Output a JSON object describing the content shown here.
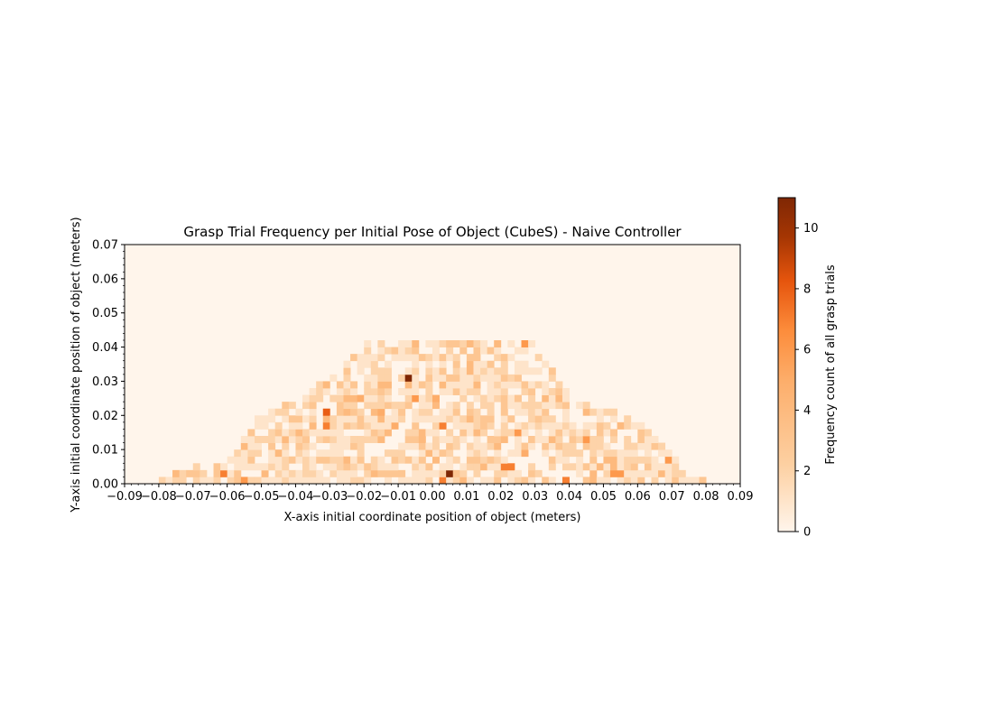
{
  "chart_data": {
    "type": "heatmap",
    "title": "Grasp Trial Frequency per Initial Pose of Object (CubeS) - Naive Controller",
    "xlabel": "X-axis initial coordinate position of object (meters)",
    "ylabel": "Y-axis initial coordinate position of object (meters)",
    "colorbar_label": "Frequency count of all grasp trials",
    "xlim": [
      -0.09,
      0.09
    ],
    "ylim": [
      0.0,
      0.07
    ],
    "x_ticks": [
      "−0.09",
      "−0.08",
      "−0.07",
      "−0.06",
      "−0.05",
      "−0.04",
      "−0.03",
      "−0.02",
      "−0.01",
      "0.00",
      "0.01",
      "0.02",
      "0.03",
      "0.04",
      "0.05",
      "0.06",
      "0.07",
      "0.08",
      "0.09"
    ],
    "y_ticks": [
      "0.00",
      "0.01",
      "0.02",
      "0.03",
      "0.04",
      "0.05",
      "0.06",
      "0.07"
    ],
    "colorbar_ticks": [
      "0",
      "2",
      "4",
      "6",
      "8",
      "10"
    ],
    "colorbar_range": [
      0,
      11
    ],
    "colormap": "Oranges",
    "colors": {
      "low": "#fff5eb",
      "mid": "#fd8d3c",
      "high": "#7f2704"
    },
    "bin_size": 0.002,
    "nonzero_region_y_extent_by_x": [
      {
        "x": -0.08,
        "y_max": 0.0
      },
      {
        "x": -0.073,
        "y_max": 0.004
      },
      {
        "x": -0.06,
        "y_max": 0.006
      },
      {
        "x": -0.052,
        "y_max": 0.018
      },
      {
        "x": -0.04,
        "y_max": 0.024
      },
      {
        "x": -0.026,
        "y_max": 0.034
      },
      {
        "x": -0.018,
        "y_max": 0.042
      },
      {
        "x": 0.028,
        "y_max": 0.042
      },
      {
        "x": 0.04,
        "y_max": 0.026
      },
      {
        "x": 0.06,
        "y_max": 0.018
      },
      {
        "x": 0.075,
        "y_max": 0.004
      },
      {
        "x": 0.08,
        "y_max": 0.0
      }
    ],
    "hot_cells": [
      {
        "x": -0.007,
        "y": 0.031,
        "value": 11
      },
      {
        "x": 0.005,
        "y": 0.003,
        "value": 11
      },
      {
        "x": 0.027,
        "y": 0.041,
        "value": 6
      },
      {
        "x": -0.005,
        "y": 0.025,
        "value": 6
      },
      {
        "x": -0.031,
        "y": 0.021,
        "value": 8
      },
      {
        "x": -0.031,
        "y": 0.017,
        "value": 7
      },
      {
        "x": 0.003,
        "y": 0.017,
        "value": 7
      },
      {
        "x": 0.021,
        "y": 0.005,
        "value": 7
      },
      {
        "x": 0.023,
        "y": 0.005,
        "value": 7
      },
      {
        "x": 0.003,
        "y": 0.001,
        "value": 7
      },
      {
        "x": 0.039,
        "y": 0.001,
        "value": 7
      },
      {
        "x": -0.061,
        "y": 0.003,
        "value": 7
      },
      {
        "x": -0.055,
        "y": 0.001,
        "value": 6
      },
      {
        "x": 0.045,
        "y": 0.013,
        "value": 6
      },
      {
        "x": 0.053,
        "y": 0.003,
        "value": 6
      },
      {
        "x": 0.069,
        "y": 0.007,
        "value": 6
      },
      {
        "x": 0.025,
        "y": 0.015,
        "value": 6
      },
      {
        "x": -0.021,
        "y": 0.025,
        "value": 5
      },
      {
        "x": -0.015,
        "y": 0.021,
        "value": 5
      },
      {
        "x": 0.001,
        "y": 0.025,
        "value": 5
      },
      {
        "x": -0.011,
        "y": 0.017,
        "value": 5
      },
      {
        "x": 0.027,
        "y": 0.009,
        "value": 5
      }
    ]
  }
}
